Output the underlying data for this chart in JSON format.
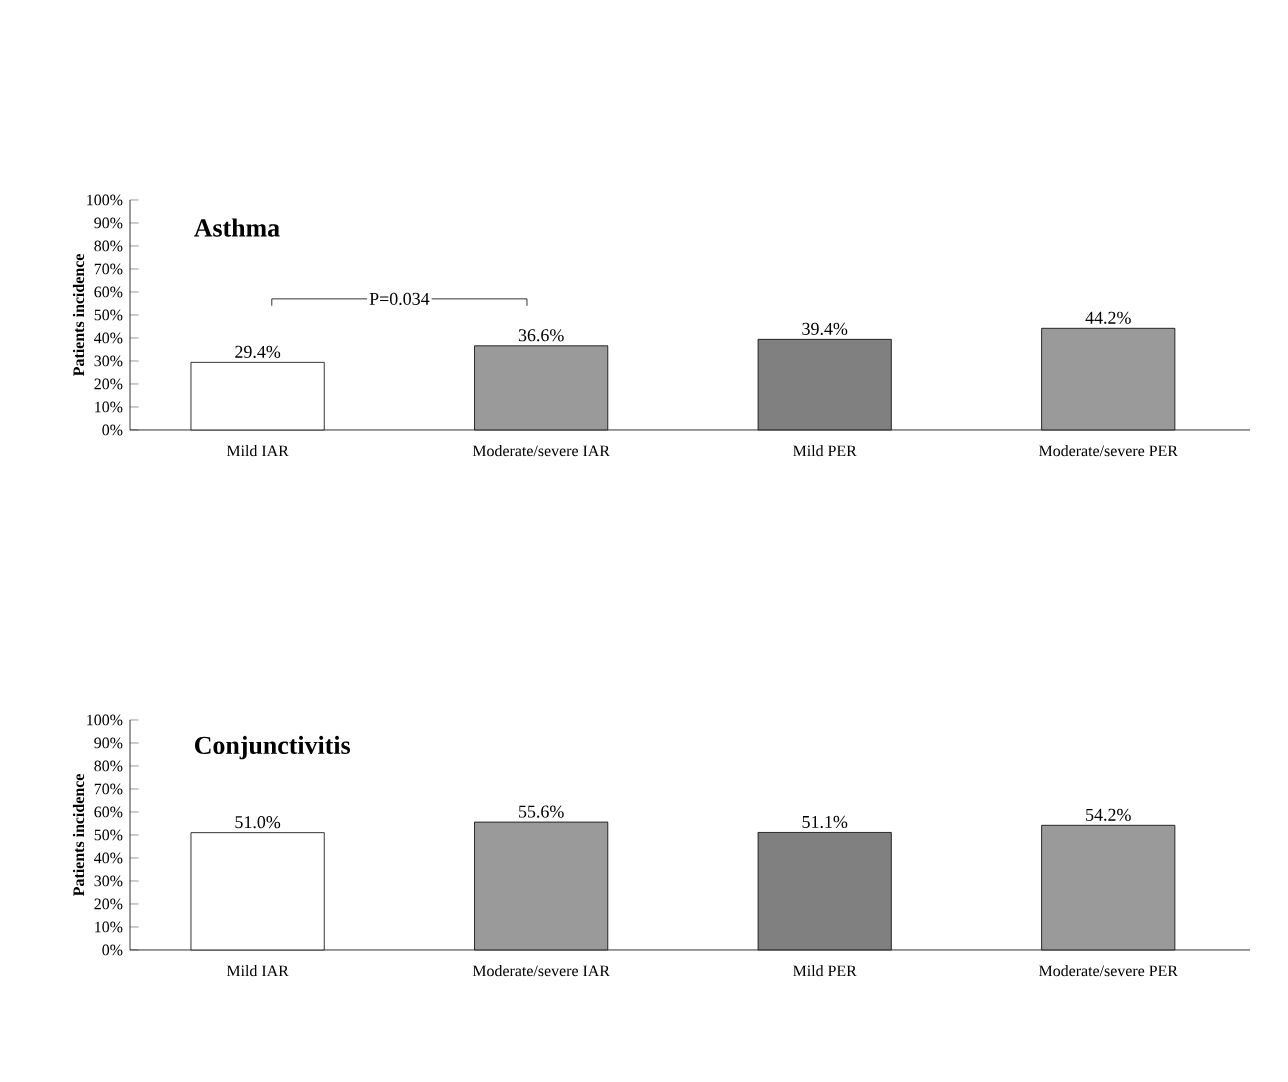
{
  "chart_data": [
    {
      "type": "bar",
      "title": "Asthma",
      "ylabel": "Patients incidence",
      "categories": [
        "Mild IAR",
        "Moderate/severe IAR",
        "Mild PER",
        "Moderate/severe PER"
      ],
      "values": [
        29.4,
        36.6,
        39.4,
        44.2
      ],
      "value_labels": [
        "29.4%",
        "36.6%",
        "39.4%",
        "44.2%"
      ],
      "colors": [
        "#ffffff",
        "#9a9a9a",
        "#808080",
        "#9a9a9a"
      ],
      "ylim": [
        0,
        100
      ],
      "yticks": [
        {
          "value": 0,
          "label": "0%"
        },
        {
          "value": 10,
          "label": "10%"
        },
        {
          "value": 20,
          "label": "20%"
        },
        {
          "value": 30,
          "label": "30%"
        },
        {
          "value": 40,
          "label": "40%"
        },
        {
          "value": 50,
          "label": "50%"
        },
        {
          "value": 60,
          "label": "60%"
        },
        {
          "value": 70,
          "label": "70%"
        },
        {
          "value": 80,
          "label": "80%"
        },
        {
          "value": 90,
          "label": "90%"
        },
        {
          "value": 100,
          "label": "100%"
        }
      ],
      "annotations": [
        "P=0.034"
      ]
    },
    {
      "type": "bar",
      "title": "Conjunctivitis",
      "ylabel": "Patients incidence",
      "categories": [
        "Mild IAR",
        "Moderate/severe IAR",
        "Mild PER",
        "Moderate/severe PER"
      ],
      "values": [
        51.0,
        55.6,
        51.1,
        54.2
      ],
      "value_labels": [
        "51.0%",
        "55.6%",
        "51.1%",
        "54.2%"
      ],
      "colors": [
        "#ffffff",
        "#9a9a9a",
        "#808080",
        "#9a9a9a"
      ],
      "ylim": [
        0,
        100
      ],
      "yticks": [
        {
          "value": 0,
          "label": "0%"
        },
        {
          "value": 10,
          "label": "10%"
        },
        {
          "value": 20,
          "label": "20%"
        },
        {
          "value": 30,
          "label": "30%"
        },
        {
          "value": 40,
          "label": "40%"
        },
        {
          "value": 50,
          "label": "50%"
        },
        {
          "value": 60,
          "label": "60%"
        },
        {
          "value": 70,
          "label": "70%"
        },
        {
          "value": 80,
          "label": "80%"
        },
        {
          "value": 90,
          "label": "90%"
        },
        {
          "value": 100,
          "label": "100%"
        }
      ]
    }
  ]
}
